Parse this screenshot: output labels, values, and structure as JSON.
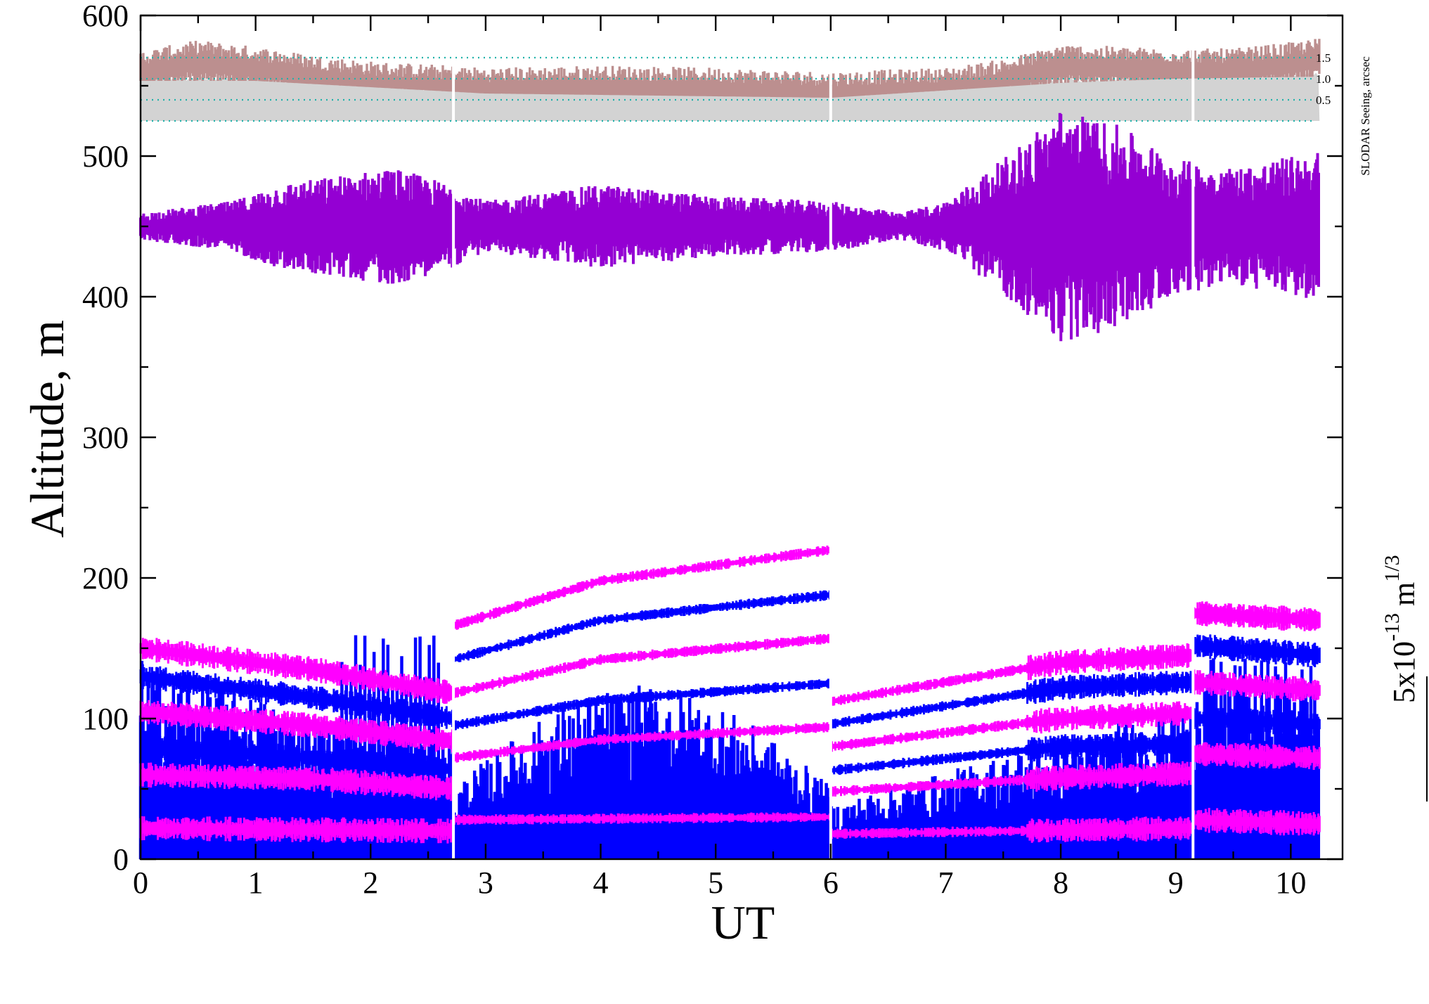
{
  "chart_data": {
    "type": "line",
    "xlabel": "UT",
    "ylabel": "Altitude, m",
    "xlim": [
      0,
      10.45
    ],
    "ylim": [
      0,
      600
    ],
    "x_ticks": [
      "0",
      "1",
      "2",
      "3",
      "4",
      "5",
      "6",
      "7",
      "8",
      "9",
      "10"
    ],
    "y_ticks": [
      "0",
      "100",
      "200",
      "300",
      "400",
      "500",
      "600"
    ],
    "grid": false,
    "segments": [
      [
        0,
        2.72
      ],
      [
        2.72,
        6.0
      ],
      [
        6.0,
        9.15
      ],
      [
        9.15,
        10.25
      ]
    ],
    "seeing_panel": {
      "label": "SLODAR Seeing, arcsec",
      "levels": [
        "0.5",
        "1.0",
        "1.5"
      ],
      "total_arcsec": [
        {
          "x": 0,
          "y": 1.2
        },
        {
          "x": 0.5,
          "y": 1.45
        },
        {
          "x": 1.0,
          "y": 1.3
        },
        {
          "x": 1.5,
          "y": 1.1
        },
        {
          "x": 2.0,
          "y": 0.95
        },
        {
          "x": 2.7,
          "y": 0.85
        },
        {
          "x": 3.0,
          "y": 0.8
        },
        {
          "x": 4.0,
          "y": 0.85
        },
        {
          "x": 5.0,
          "y": 0.8
        },
        {
          "x": 6.0,
          "y": 0.7
        },
        {
          "x": 7.0,
          "y": 0.8
        },
        {
          "x": 7.5,
          "y": 1.0
        },
        {
          "x": 8.0,
          "y": 1.35
        },
        {
          "x": 8.5,
          "y": 1.3
        },
        {
          "x": 9.0,
          "y": 1.25
        },
        {
          "x": 9.5,
          "y": 1.25
        },
        {
          "x": 10.0,
          "y": 1.4
        },
        {
          "x": 10.25,
          "y": 1.5
        }
      ],
      "ground_arcsec": [
        {
          "x": 0,
          "y": 1.0
        },
        {
          "x": 1.0,
          "y": 1.0
        },
        {
          "x": 2.0,
          "y": 0.85
        },
        {
          "x": 3.0,
          "y": 0.7
        },
        {
          "x": 6.0,
          "y": 0.6
        },
        {
          "x": 8.0,
          "y": 0.95
        },
        {
          "x": 9.0,
          "y": 1.05
        },
        {
          "x": 10.25,
          "y": 1.1
        }
      ]
    },
    "profile_trace": {
      "baseline_m": 450,
      "amplitude_m": [
        {
          "x": 0,
          "y": 8
        },
        {
          "x": 0.8,
          "y": 15
        },
        {
          "x": 1.2,
          "y": 25
        },
        {
          "x": 2.2,
          "y": 35
        },
        {
          "x": 2.7,
          "y": 25
        },
        {
          "x": 3.0,
          "y": 15
        },
        {
          "x": 4.0,
          "y": 25
        },
        {
          "x": 5.0,
          "y": 18
        },
        {
          "x": 6.0,
          "y": 15
        },
        {
          "x": 6.6,
          "y": 8
        },
        {
          "x": 7.0,
          "y": 15
        },
        {
          "x": 7.5,
          "y": 40
        },
        {
          "x": 8.0,
          "y": 70
        },
        {
          "x": 8.5,
          "y": 60
        },
        {
          "x": 9.0,
          "y": 40
        },
        {
          "x": 9.5,
          "y": 35
        },
        {
          "x": 10.25,
          "y": 45
        }
      ]
    },
    "series": [
      {
        "color": "#ff00ff",
        "values": [
          {
            "x": 0,
            "y": 150
          },
          {
            "x": 1.5,
            "y": 135
          },
          {
            "x": 2.72,
            "y": 118
          },
          {
            "x": 2.72,
            "y": 166
          },
          {
            "x": 4.0,
            "y": 198
          },
          {
            "x": 6.0,
            "y": 220
          },
          {
            "x": 6.0,
            "y": 112
          },
          {
            "x": 8.0,
            "y": 140
          },
          {
            "x": 9.15,
            "y": 145
          },
          {
            "x": 9.15,
            "y": 175
          },
          {
            "x": 10.25,
            "y": 170
          }
        ]
      },
      {
        "color": "#0000ff",
        "values": [
          {
            "x": 0,
            "y": 130
          },
          {
            "x": 1.5,
            "y": 115
          },
          {
            "x": 2.72,
            "y": 100
          },
          {
            "x": 2.72,
            "y": 142
          },
          {
            "x": 4.0,
            "y": 170
          },
          {
            "x": 6.0,
            "y": 188
          },
          {
            "x": 6.0,
            "y": 96
          },
          {
            "x": 8.0,
            "y": 122
          },
          {
            "x": 9.15,
            "y": 126
          },
          {
            "x": 9.15,
            "y": 152
          },
          {
            "x": 10.25,
            "y": 145
          }
        ]
      },
      {
        "color": "#ff00ff",
        "values": [
          {
            "x": 0,
            "y": 105
          },
          {
            "x": 1.5,
            "y": 95
          },
          {
            "x": 2.72,
            "y": 84
          },
          {
            "x": 2.72,
            "y": 118
          },
          {
            "x": 4.0,
            "y": 142
          },
          {
            "x": 6.0,
            "y": 157
          },
          {
            "x": 6.0,
            "y": 80
          },
          {
            "x": 8.0,
            "y": 100
          },
          {
            "x": 9.15,
            "y": 104
          },
          {
            "x": 9.15,
            "y": 126
          },
          {
            "x": 10.25,
            "y": 120
          }
        ]
      },
      {
        "color": "#0000ff",
        "values": [
          {
            "x": 0,
            "y": 80
          },
          {
            "x": 1.5,
            "y": 72
          },
          {
            "x": 2.72,
            "y": 64
          },
          {
            "x": 2.72,
            "y": 95
          },
          {
            "x": 4.0,
            "y": 113
          },
          {
            "x": 6.0,
            "y": 125
          },
          {
            "x": 6.0,
            "y": 63
          },
          {
            "x": 8.0,
            "y": 80
          },
          {
            "x": 9.15,
            "y": 82
          },
          {
            "x": 9.15,
            "y": 100
          },
          {
            "x": 10.25,
            "y": 96
          }
        ]
      },
      {
        "color": "#ff00ff",
        "values": [
          {
            "x": 0,
            "y": 60
          },
          {
            "x": 1.5,
            "y": 57
          },
          {
            "x": 2.72,
            "y": 50
          },
          {
            "x": 2.72,
            "y": 72
          },
          {
            "x": 4.0,
            "y": 85
          },
          {
            "x": 6.0,
            "y": 94
          },
          {
            "x": 6.0,
            "y": 48
          },
          {
            "x": 8.0,
            "y": 58
          },
          {
            "x": 9.15,
            "y": 61
          },
          {
            "x": 9.15,
            "y": 75
          },
          {
            "x": 10.25,
            "y": 72
          }
        ]
      },
      {
        "color": "#ff00ff",
        "values": [
          {
            "x": 0,
            "y": 22
          },
          {
            "x": 2.72,
            "y": 20
          },
          {
            "x": 2.72,
            "y": 28
          },
          {
            "x": 6.0,
            "y": 30
          },
          {
            "x": 6.0,
            "y": 18
          },
          {
            "x": 9.15,
            "y": 22
          },
          {
            "x": 9.15,
            "y": 28
          },
          {
            "x": 10.25,
            "y": 25
          }
        ]
      }
    ],
    "scale_bar": {
      "label_base": "5x10",
      "label_exp1": "-13",
      "label_unit": "m",
      "label_exp2": "1/3"
    },
    "colors": {
      "magenta": "#ff00ff",
      "blue": "#0000ff",
      "violet": "#9400d3",
      "seeing_total": "#bc8f8f",
      "seeing_ground": "#d3d3d3",
      "level_lines": "#20b2aa"
    }
  }
}
